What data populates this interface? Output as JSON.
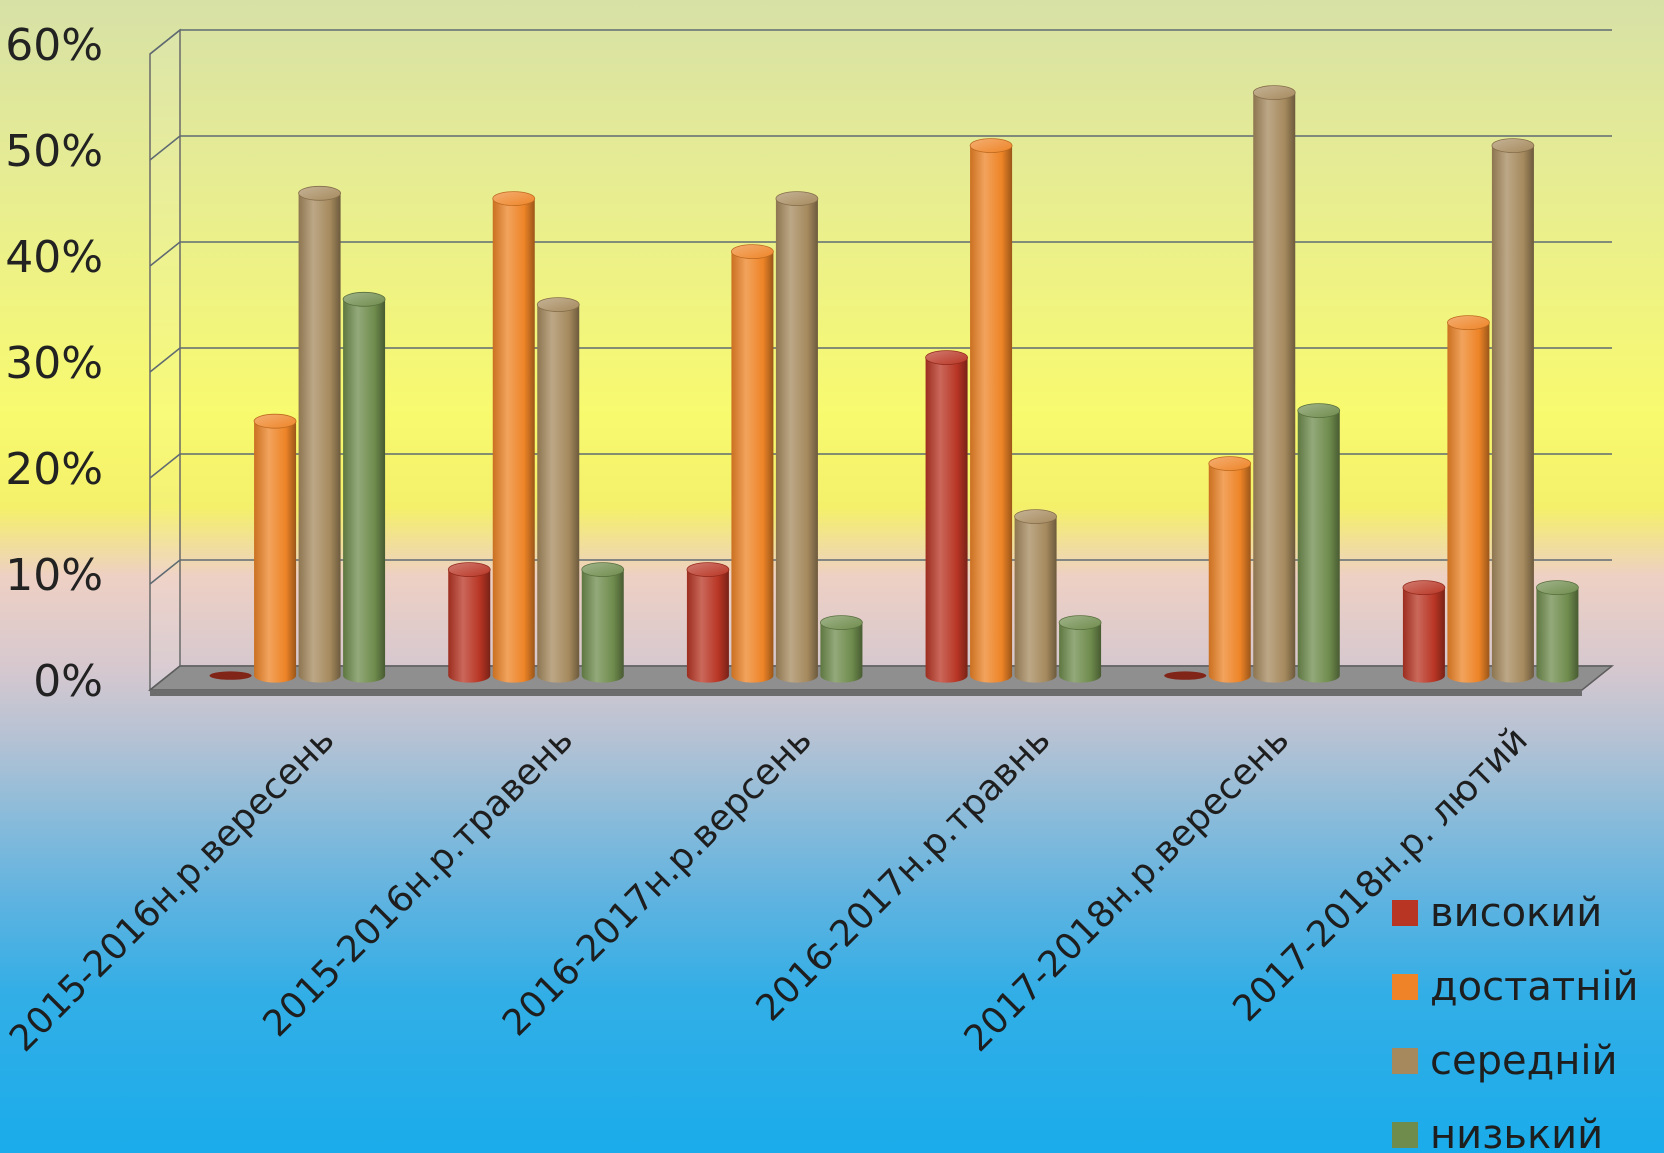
{
  "chart_data": {
    "type": "bar",
    "title": "",
    "xlabel": "",
    "ylabel": "",
    "ylim": [
      0,
      60
    ],
    "yticks": [
      "0%",
      "10%",
      "20%",
      "30%",
      "40%",
      "50%",
      "60%"
    ],
    "grid": true,
    "legend_position": "bottom-right",
    "categories": [
      "2015-2016н.р.вересень",
      "2015-2016н.р.травень",
      "2016-2017н.р.версень",
      "2016-2017н.р.травнь",
      "2017-2018н.р.вересень",
      "2017-2018н.р. лютий"
    ],
    "series": [
      {
        "name": "високий",
        "color": "#b83524",
        "values": [
          0,
          10,
          10,
          30,
          0,
          8.3
        ]
      },
      {
        "name": "достатній",
        "color": "#ee8427",
        "values": [
          24,
          45,
          40,
          50,
          20,
          33.3
        ]
      },
      {
        "name": "середній",
        "color": "#a68a5e",
        "values": [
          45.5,
          35,
          45,
          15,
          55,
          50
        ]
      },
      {
        "name": "низький",
        "color": "#6f8c4d",
        "values": [
          35.5,
          10,
          5,
          5,
          25,
          8.3
        ]
      }
    ]
  }
}
